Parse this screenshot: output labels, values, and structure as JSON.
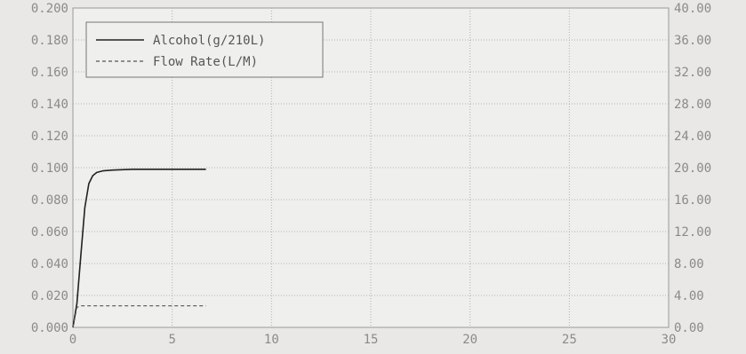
{
  "chart_data": {
    "type": "line",
    "title": "",
    "xlabel": "",
    "ylabel": "",
    "xlim": [
      0,
      30
    ],
    "ylim": [
      0,
      0.2
    ],
    "y2lim": [
      0,
      40
    ],
    "grid": true,
    "legend_position": "top-left",
    "x_ticks": [
      "0",
      "5",
      "10",
      "15",
      "20",
      "25",
      "30"
    ],
    "y_ticks": [
      "0.000",
      "0.020",
      "0.040",
      "0.060",
      "0.080",
      "0.100",
      "0.120",
      "0.140",
      "0.160",
      "0.180",
      "0.200"
    ],
    "y2_ticks": [
      "0.00",
      "4.00",
      "8.00",
      "12.00",
      "16.00",
      "20.00",
      "24.00",
      "28.00",
      "32.00",
      "36.00",
      "40.00"
    ],
    "series": [
      {
        "name": "Alcohol(g/210L)",
        "axis": "left",
        "style": "solid",
        "color": "#222222",
        "x": [
          0.0,
          0.2,
          0.4,
          0.6,
          0.8,
          1.0,
          1.2,
          1.5,
          2.0,
          3.0,
          4.0,
          5.0,
          6.0,
          6.7
        ],
        "y": [
          0.0,
          0.015,
          0.045,
          0.075,
          0.09,
          0.095,
          0.097,
          0.098,
          0.0985,
          0.099,
          0.099,
          0.099,
          0.099,
          0.099
        ]
      },
      {
        "name": "Flow Rate(L/M)",
        "axis": "right",
        "style": "dashed",
        "color": "#555555",
        "x": [
          0.0,
          0.2,
          0.4,
          1.0,
          3.0,
          5.0,
          6.7
        ],
        "y": [
          0.0,
          2.5,
          2.7,
          2.7,
          2.7,
          2.7,
          2.7
        ]
      }
    ]
  }
}
